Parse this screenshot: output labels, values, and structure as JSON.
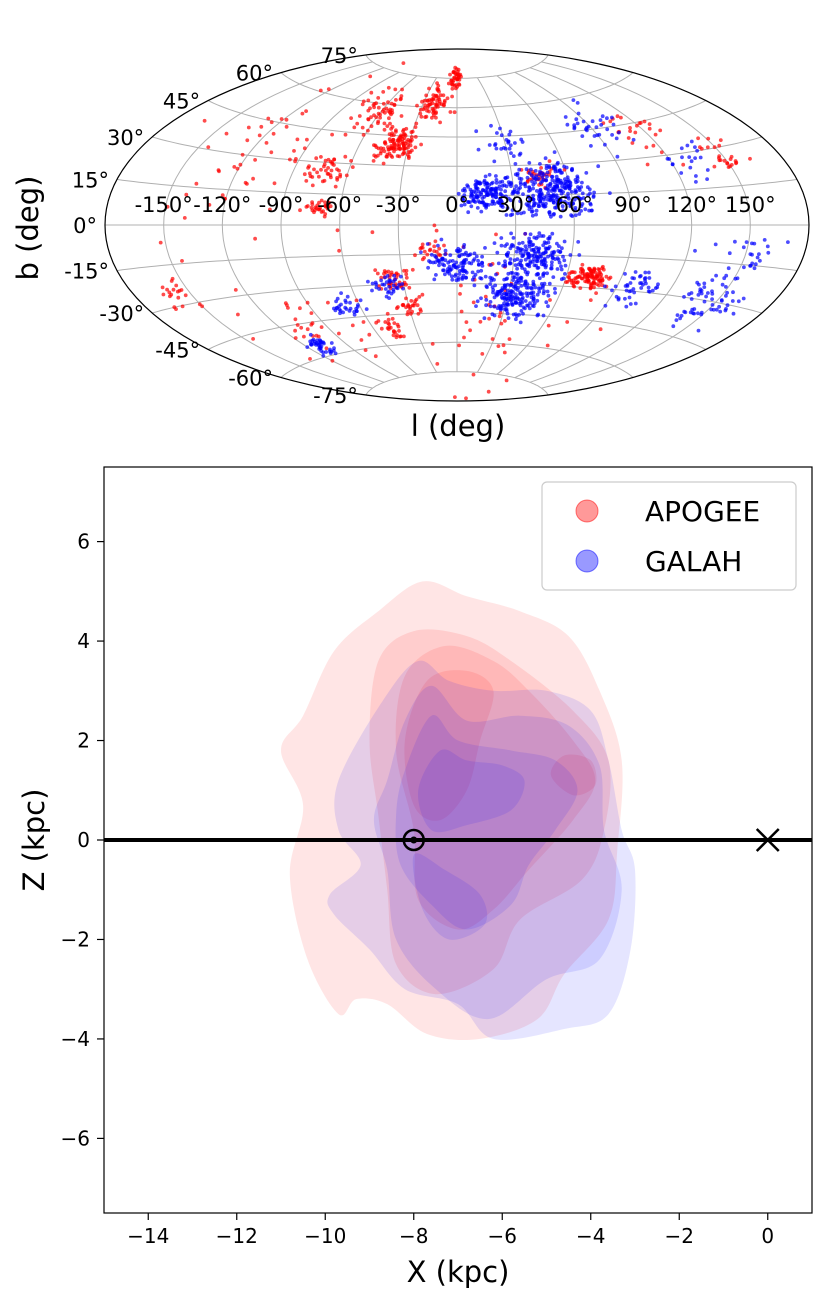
{
  "chart_data": [
    {
      "type": "scatter",
      "projection": "aitoff",
      "xlabel": "l (deg)",
      "ylabel": "b (deg)",
      "grid": true,
      "lon_ticks": [
        -150,
        -120,
        -90,
        -60,
        -30,
        0,
        30,
        60,
        90,
        120,
        150
      ],
      "lon_tick_labels": [
        "-150°",
        "-120°",
        "-90°",
        "-60°",
        "-30°",
        "0°",
        "30°",
        "60°",
        "90°",
        "120°",
        "150°"
      ],
      "lat_ticks": [
        75,
        60,
        45,
        30,
        15,
        0,
        -15,
        -30,
        -45,
        -60,
        -75
      ],
      "lat_tick_labels": [
        "75°",
        "60°",
        "45°",
        "30°",
        "15°",
        "0°",
        "-15°",
        "-30°",
        "-45°",
        "-60°",
        "-75°"
      ],
      "series": [
        {
          "color": "#ff0000",
          "clusters": [
            {
              "l": -45,
              "b": 24,
              "spread": 8,
              "n": 30
            },
            {
              "l": 2,
              "b": 75,
              "spread": 6,
              "n": 40
            },
            {
              "l": 20,
              "b": 62,
              "spread": 10,
              "n": 70
            },
            {
              "l": 38,
              "b": 40,
              "spread": 9,
              "n": 110
            },
            {
              "l": 60,
              "b": 55,
              "spread": 14,
              "n": 60
            },
            {
              "l": 70,
              "b": 25,
              "spread": 10,
              "n": 40
            },
            {
              "l": 72,
              "b": 8,
              "spread": 5,
              "n": 30
            },
            {
              "l": -150,
              "b": 28,
              "spread": 8,
              "n": 25
            },
            {
              "l": -115,
              "b": 40,
              "spread": 15,
              "n": 25
            },
            {
              "l": -72,
              "b": -25,
              "spread": 7,
              "n": 110
            },
            {
              "l": 15,
              "b": -13,
              "spread": 7,
              "n": 20
            },
            {
              "l": 35,
              "b": -28,
              "spread": 8,
              "n": 40
            },
            {
              "l": 30,
              "b": -42,
              "spread": 6,
              "n": 25
            },
            {
              "l": 48,
              "b": -52,
              "spread": 7,
              "n": 25
            },
            {
              "l": 100,
              "b": -45,
              "spread": 25,
              "n": 30
            },
            {
              "l": 160,
              "b": -25,
              "spread": 8,
              "n": 20
            },
            {
              "l": 110,
              "b": 30,
              "spread": 40,
              "n": 60
            },
            {
              "l": -10,
              "b": -45,
              "spread": 60,
              "n": 60
            }
          ]
        },
        {
          "color": "#0000ff",
          "clusters": [
            {
              "l": -50,
              "b": 17,
              "spread": 16,
              "n": 300
            },
            {
              "l": -15,
              "b": 16,
              "spread": 10,
              "n": 150
            },
            {
              "l": -90,
              "b": 45,
              "spread": 12,
              "n": 35
            },
            {
              "l": -30,
              "b": 42,
              "spread": 10,
              "n": 30
            },
            {
              "l": -130,
              "b": 25,
              "spread": 10,
              "n": 20
            },
            {
              "l": -40,
              "b": -15,
              "spread": 14,
              "n": 180
            },
            {
              "l": -35,
              "b": -35,
              "spread": 14,
              "n": 200
            },
            {
              "l": 0,
              "b": -20,
              "spread": 12,
              "n": 120
            },
            {
              "l": -100,
              "b": -28,
              "spread": 10,
              "n": 45
            },
            {
              "l": -145,
              "b": -30,
              "spread": 12,
              "n": 60
            },
            {
              "l": 40,
              "b": -30,
              "spread": 8,
              "n": 35
            },
            {
              "l": 70,
              "b": -40,
              "spread": 8,
              "n": 30
            },
            {
              "l": 110,
              "b": -55,
              "spread": 6,
              "n": 40
            },
            {
              "l": -150,
              "b": -12,
              "spread": 15,
              "n": 25
            }
          ]
        }
      ]
    },
    {
      "type": "contour",
      "xlabel": "X (kpc)",
      "ylabel": "Z (kpc)",
      "xlim": [
        -15,
        1
      ],
      "ylim": [
        -7.5,
        7.5
      ],
      "xticks": [
        -14,
        -12,
        -10,
        -8,
        -6,
        -4,
        -2,
        0
      ],
      "xtick_labels": [
        "−14",
        "−12",
        "−10",
        "−8",
        "−6",
        "−4",
        "−2",
        "0"
      ],
      "yticks": [
        6,
        4,
        2,
        0,
        -2,
        -4,
        -6
      ],
      "ytick_labels": [
        "6",
        "4",
        "2",
        "0",
        "−2",
        "−4",
        "−6"
      ],
      "legend_position": "top-right",
      "series": [
        {
          "name": "APOGEE",
          "color": "#ff0000",
          "levels": [
            [
              [
                -10.5,
                2.5
              ],
              [
                -9.8,
                3.8
              ],
              [
                -8.8,
                4.6
              ],
              [
                -7.8,
                5.2
              ],
              [
                -6.8,
                4.9
              ],
              [
                -5.6,
                4.6
              ],
              [
                -4.5,
                4.1
              ],
              [
                -3.8,
                3.0
              ],
              [
                -3.3,
                1.6
              ],
              [
                -3.4,
                -0.2
              ],
              [
                -3.6,
                -1.6
              ],
              [
                -4.6,
                -2.7
              ],
              [
                -5.2,
                -3.6
              ],
              [
                -6.5,
                -4.0
              ],
              [
                -7.7,
                -3.9
              ],
              [
                -8.6,
                -3.3
              ],
              [
                -9.3,
                -3.2
              ],
              [
                -9.7,
                -3.5
              ],
              [
                -10.4,
                -2.4
              ],
              [
                -10.8,
                -0.7
              ],
              [
                -10.5,
                0.7
              ],
              [
                -11.0,
                1.8
              ]
            ],
            [
              [
                -9.0,
                2.0
              ],
              [
                -8.8,
                3.6
              ],
              [
                -8.0,
                4.2
              ],
              [
                -6.8,
                4.1
              ],
              [
                -5.8,
                3.6
              ],
              [
                -4.4,
                2.6
              ],
              [
                -3.6,
                1.6
              ],
              [
                -3.7,
                0.2
              ],
              [
                -4.2,
                -0.8
              ],
              [
                -5.6,
                -1.6
              ],
              [
                -6.2,
                -2.6
              ],
              [
                -7.5,
                -3.1
              ],
              [
                -8.4,
                -2.5
              ],
              [
                -8.6,
                -1.0
              ],
              [
                -8.8,
                0.5
              ]
            ],
            [
              [
                -8.4,
                1.8
              ],
              [
                -8.2,
                3.3
              ],
              [
                -7.3,
                3.9
              ],
              [
                -6.2,
                3.6
              ],
              [
                -5.4,
                3.0
              ],
              [
                -4.4,
                2.0
              ],
              [
                -3.9,
                1.2
              ],
              [
                -4.4,
                0.4
              ],
              [
                -5.4,
                -0.6
              ],
              [
                -6.2,
                -1.4
              ],
              [
                -7.0,
                -1.8
              ],
              [
                -7.9,
                -1.2
              ],
              [
                -8.0,
                0.2
              ]
            ],
            [
              [
                -8.2,
                2.0
              ],
              [
                -7.7,
                3.2
              ],
              [
                -6.8,
                3.4
              ],
              [
                -6.2,
                3.0
              ],
              [
                -6.5,
                2.0
              ],
              [
                -6.8,
                1.0
              ],
              [
                -7.4,
                0.4
              ],
              [
                -8.0,
                0.7
              ]
            ],
            [
              [
                -4.9,
                1.3
              ],
              [
                -4.6,
                1.7
              ],
              [
                -4.0,
                1.6
              ],
              [
                -3.9,
                1.1
              ],
              [
                -4.4,
                0.9
              ]
            ]
          ]
        },
        {
          "name": "GALAH",
          "color": "#0000ff",
          "levels": [
            [
              [
                -9.7,
                1.2
              ],
              [
                -8.7,
                2.8
              ],
              [
                -7.9,
                3.6
              ],
              [
                -7.2,
                3.2
              ],
              [
                -6.2,
                3.0
              ],
              [
                -5.0,
                3.0
              ],
              [
                -4.0,
                2.6
              ],
              [
                -3.6,
                1.6
              ],
              [
                -3.3,
                0.2
              ],
              [
                -3.0,
                -0.6
              ],
              [
                -3.1,
                -2.2
              ],
              [
                -3.6,
                -3.5
              ],
              [
                -4.6,
                -3.8
              ],
              [
                -6.2,
                -4.0
              ],
              [
                -7.0,
                -3.3
              ],
              [
                -8.2,
                -3.0
              ],
              [
                -9.0,
                -2.2
              ],
              [
                -9.8,
                -1.5
              ],
              [
                -9.9,
                -1.1
              ],
              [
                -9.2,
                -0.5
              ],
              [
                -9.7,
                0.2
              ]
            ],
            [
              [
                -8.6,
                1.2
              ],
              [
                -8.2,
                2.4
              ],
              [
                -7.6,
                3.1
              ],
              [
                -6.8,
                2.4
              ],
              [
                -5.6,
                2.5
              ],
              [
                -4.5,
                2.3
              ],
              [
                -3.8,
                1.5
              ],
              [
                -3.7,
                0.2
              ],
              [
                -3.3,
                -1.0
              ],
              [
                -3.8,
                -2.4
              ],
              [
                -5.0,
                -2.8
              ],
              [
                -6.3,
                -3.6
              ],
              [
                -7.5,
                -3.0
              ],
              [
                -8.4,
                -2.0
              ],
              [
                -8.6,
                -0.6
              ],
              [
                -8.9,
                0.4
              ]
            ],
            [
              [
                -8.2,
                1.4
              ],
              [
                -7.6,
                2.5
              ],
              [
                -7.0,
                2.0
              ],
              [
                -5.8,
                1.8
              ],
              [
                -4.8,
                1.6
              ],
              [
                -4.3,
                1.0
              ],
              [
                -4.8,
                0.2
              ],
              [
                -5.4,
                -0.5
              ],
              [
                -5.8,
                -1.3
              ],
              [
                -6.8,
                -1.8
              ],
              [
                -7.6,
                -1.3
              ],
              [
                -8.3,
                -0.5
              ],
              [
                -8.4,
                0.5
              ]
            ],
            [
              [
                -7.9,
                1.0
              ],
              [
                -7.4,
                1.8
              ],
              [
                -6.8,
                1.6
              ],
              [
                -6.0,
                1.5
              ],
              [
                -5.5,
                1.2
              ],
              [
                -5.8,
                0.6
              ],
              [
                -6.8,
                0.3
              ],
              [
                -7.6,
                0.2
              ]
            ],
            [
              [
                -8.0,
                -0.3
              ],
              [
                -7.3,
                -0.6
              ],
              [
                -6.5,
                -1.1
              ],
              [
                -6.4,
                -1.7
              ],
              [
                -7.2,
                -2.0
              ],
              [
                -7.8,
                -1.4
              ]
            ]
          ]
        }
      ],
      "markers": [
        {
          "type": "sun",
          "x": -8,
          "y": 0,
          "color": "#000000"
        },
        {
          "type": "cross",
          "x": 0,
          "y": 0,
          "color": "#000000"
        }
      ],
      "hline": {
        "y": 0,
        "color": "#000000"
      }
    }
  ]
}
